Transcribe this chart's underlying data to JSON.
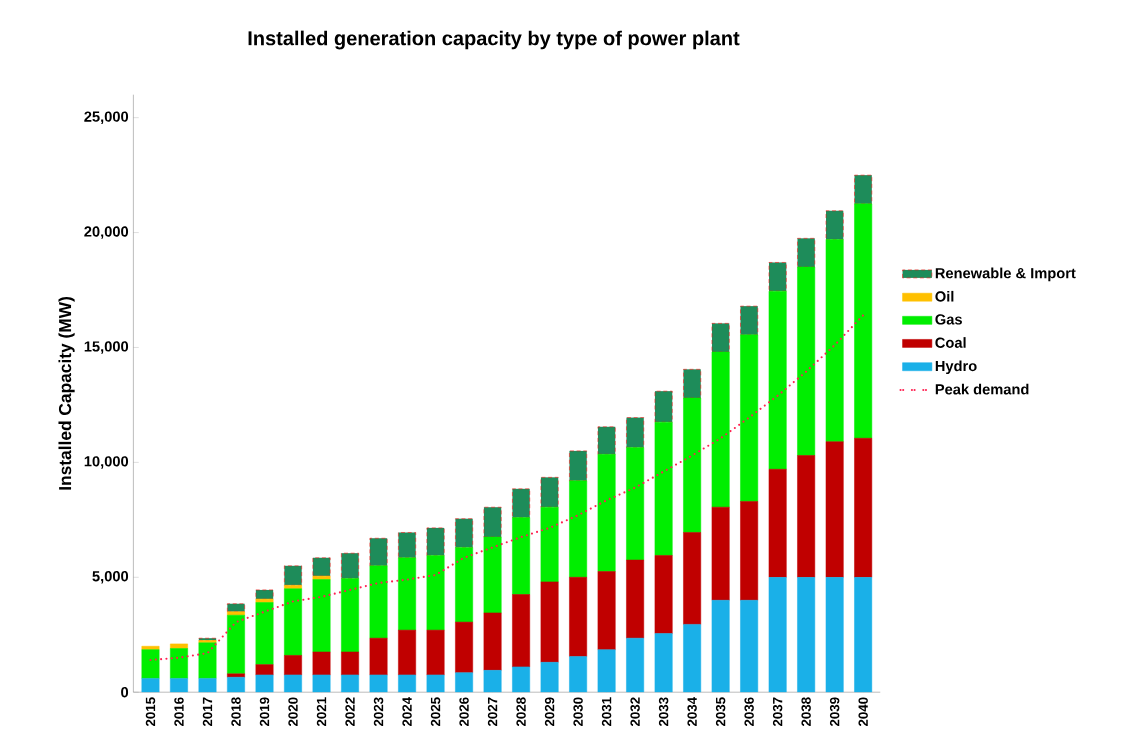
{
  "chart_data": {
    "type": "bar",
    "title": "Installed generation capacity by type of power plant",
    "ylabel": "Installed Capacity (MW)",
    "categories": [
      "2015",
      "2016",
      "2017",
      "2018",
      "2019",
      "2020",
      "2021",
      "2022",
      "2023",
      "2024",
      "2025",
      "2026",
      "2027",
      "2028",
      "2029",
      "2030",
      "2031",
      "2032",
      "2033",
      "2034",
      "2035",
      "2036",
      "2037",
      "2038",
      "2039",
      "2040"
    ],
    "stacked": true,
    "ylim": [
      0,
      26000
    ],
    "yticks": [
      0,
      {
        "value": 5000,
        "label": "5,000"
      },
      {
        "value": 10000,
        "label": "10,000"
      },
      {
        "value": 15000,
        "label": "15,000"
      },
      {
        "value": 20000,
        "label": "20,000"
      },
      {
        "value": 25000,
        "label": "25,000"
      }
    ],
    "legend": "right",
    "grid": false,
    "series": [
      {
        "name": "Hydro",
        "color": "#1ab0e8",
        "values": [
          600,
          600,
          600,
          650,
          750,
          750,
          750,
          750,
          750,
          750,
          750,
          850,
          950,
          1100,
          1300,
          1550,
          1850,
          2350,
          2550,
          2950,
          4000,
          4000,
          5000,
          5000,
          5000,
          5000
        ]
      },
      {
        "name": "Coal",
        "color": "#c00000",
        "values": [
          0,
          0,
          0,
          150,
          450,
          850,
          1000,
          1000,
          1600,
          1950,
          1950,
          2200,
          2500,
          3150,
          3500,
          3450,
          3400,
          3400,
          3400,
          4000,
          4050,
          4300,
          4700,
          5300,
          5900,
          6050
        ]
      },
      {
        "name": "Gas",
        "color": "#00ee00",
        "values": [
          1250,
          1300,
          1550,
          2550,
          2700,
          2900,
          3150,
          3200,
          3150,
          3150,
          3250,
          3250,
          3300,
          3350,
          3250,
          4200,
          5100,
          4900,
          5800,
          5850,
          6750,
          7250,
          7750,
          8200,
          8800,
          10200
        ]
      },
      {
        "name": "Oil",
        "color": "#ffc000",
        "values": [
          150,
          200,
          100,
          150,
          150,
          150,
          150,
          0,
          0,
          0,
          0,
          0,
          0,
          0,
          0,
          0,
          0,
          0,
          0,
          0,
          0,
          0,
          0,
          0,
          0,
          0
        ]
      },
      {
        "name": "Renewable & Import",
        "color": "#1e8c5a",
        "values": [
          0,
          0,
          100,
          350,
          400,
          850,
          800,
          1100,
          1200,
          1100,
          1200,
          1250,
          1300,
          1250,
          1300,
          1300,
          1200,
          1300,
          1350,
          1250,
          1250,
          1250,
          1250,
          1250,
          1250,
          1250
        ]
      },
      {
        "name": "Peak demand",
        "type": "line",
        "color": "#ff2050",
        "line_style": "dotted",
        "marker": "none",
        "values": [
          1400,
          1500,
          1700,
          3050,
          3500,
          3950,
          4150,
          4450,
          4750,
          4900,
          5100,
          5850,
          6300,
          6750,
          7150,
          7700,
          8350,
          8900,
          9600,
          10300,
          11050,
          11950,
          12900,
          13950,
          15100,
          16400
        ]
      }
    ]
  }
}
